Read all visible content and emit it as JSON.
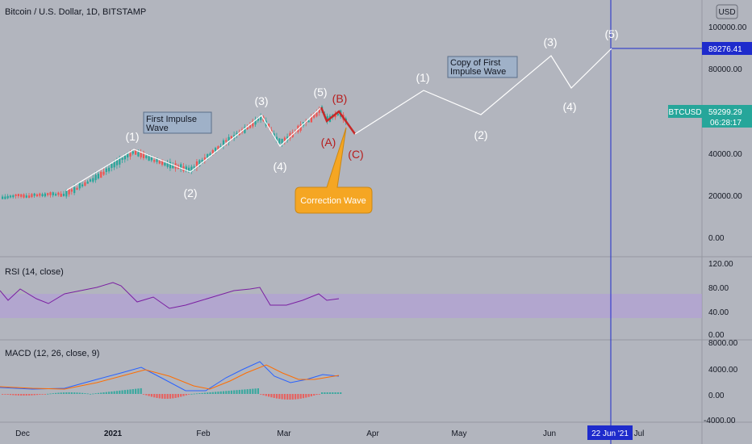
{
  "header": {
    "symbol_title": "Bitcoin / U.S. Dollar, 1D, BITSTAMP",
    "currency_button": "USD"
  },
  "price_axis": {
    "ticks": [
      "100000.00",
      "80000.00",
      "40000.00",
      "20000.00",
      "0.00"
    ],
    "current_price_label": "89276.41",
    "symbol_badge": "BTCUSD",
    "symbol_price": "59299.29",
    "countdown": "06:28:17"
  },
  "rsi": {
    "title": "RSI (14, close)",
    "ticks": [
      "120.00",
      "80.00",
      "40.00",
      "0.00"
    ]
  },
  "macd": {
    "title": "MACD (12, 26, close, 9)",
    "ticks": [
      "8000.00",
      "4000.00",
      "0.00",
      "-4000.00"
    ]
  },
  "time_axis": {
    "labels": [
      "Dec",
      "2021",
      "Feb",
      "Mar",
      "Apr",
      "May",
      "Jun",
      "Jul"
    ],
    "crosshair_date": "22 Jun '21"
  },
  "annotations": {
    "first_impulse": "First Impulse\nWave",
    "copy_impulse": "Copy of First\nImpulse Wave",
    "correction": "Correction Wave",
    "wave_labels_1": [
      "(1)",
      "(2)",
      "(3)",
      "(4)",
      "(5)"
    ],
    "wave_labels_abc": [
      "(A)",
      "(B)",
      "(C)"
    ],
    "wave_labels_2": [
      "(1)",
      "(2)",
      "(3)",
      "(4)",
      "(5)"
    ]
  },
  "colors": {
    "background": "#b2b5be",
    "up_candle": "#26a69a",
    "down_candle": "#ef5350",
    "rsi_line": "#7b1fa2",
    "rsi_band": "#b39ddb",
    "macd_line": "#2962ff",
    "signal_line": "#ff6d00",
    "crosshair": "#1e2bcc",
    "correction_box": "#f5a623",
    "wave_red": "#b71c1c",
    "symbol_badge_bg": "#26a69a"
  }
}
